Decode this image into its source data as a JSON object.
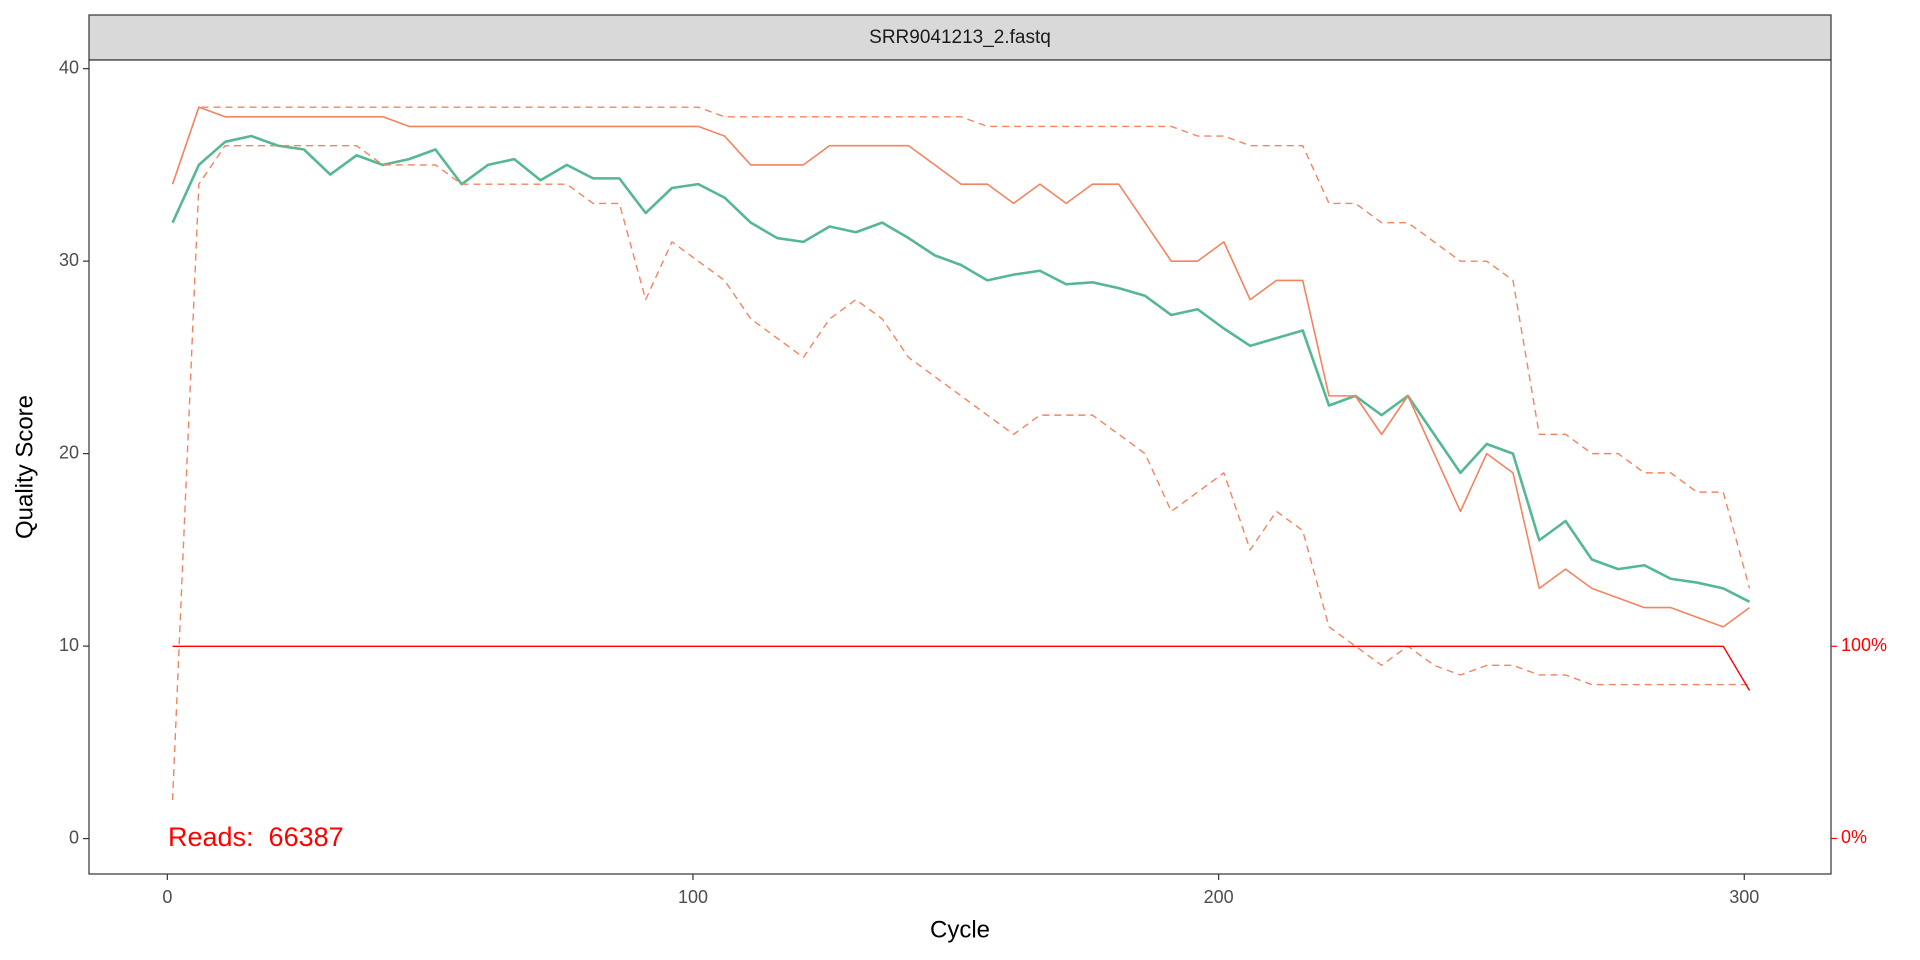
{
  "chart_data": {
    "type": "line",
    "strip_title": "SRR9041213_2.fastq",
    "x_label": "Cycle",
    "y_label": "Quality Score",
    "annotation": "Reads:  66387",
    "annotation_color": "#ff0000",
    "xlim": [
      -14.9,
      316.5
    ],
    "xticks": [
      0,
      100,
      200,
      300
    ],
    "ylim": [
      -1.84,
      40.45
    ],
    "yticks": [
      0,
      10,
      20,
      30,
      40
    ],
    "y2lim": [
      -18.5,
      405.1
    ],
    "y2ticks": [
      {
        "value": 0,
        "label": "0%"
      },
      {
        "value": 100,
        "label": "100%"
      }
    ],
    "y2_color": "#ff0000",
    "grid": false,
    "x": [
      1,
      6,
      11,
      16,
      21,
      26,
      31,
      36,
      41,
      46,
      51,
      56,
      61,
      66,
      71,
      76,
      81,
      86,
      91,
      96,
      101,
      106,
      111,
      116,
      121,
      126,
      131,
      136,
      141,
      146,
      151,
      156,
      161,
      166,
      171,
      176,
      181,
      186,
      191,
      196,
      201,
      206,
      211,
      216,
      221,
      226,
      231,
      236,
      241,
      246,
      251,
      256,
      261,
      266,
      271,
      276,
      281,
      286,
      291,
      296,
      301
    ],
    "series": [
      {
        "color": "#56b893",
        "width": 2.6,
        "dash": false,
        "values": [
          32,
          35,
          36.2,
          36.5,
          36,
          35.8,
          34.5,
          35.5,
          35,
          35.3,
          35.8,
          34,
          35,
          35.3,
          34.2,
          35,
          34.3,
          34.3,
          32.5,
          33.8,
          34,
          33.3,
          32,
          31.2,
          31,
          31.8,
          31.5,
          32,
          31.2,
          30.3,
          29.8,
          29,
          29.3,
          29.5,
          28.8,
          28.9,
          28.6,
          28.2,
          27.2,
          27.5,
          26.5,
          25.6,
          26,
          26.4,
          22.5,
          23,
          22,
          23,
          21,
          19,
          20.5,
          20,
          15.5,
          16.5,
          14.5,
          14,
          14.2,
          13.5,
          13.3,
          13,
          12.3
        ]
      },
      {
        "color": "#f4845f",
        "width": 1.6,
        "dash": false,
        "values": [
          34,
          38,
          37.5,
          37.5,
          37.5,
          37.5,
          37.5,
          37.5,
          37.5,
          37,
          37,
          37,
          37,
          37,
          37,
          37,
          37,
          37,
          37,
          37,
          37,
          36.5,
          35,
          35,
          35,
          36,
          36,
          36,
          36,
          35,
          34,
          34,
          33,
          34,
          33,
          34,
          34,
          32,
          30,
          30,
          31,
          28,
          29,
          29,
          23,
          23,
          21,
          23,
          20,
          17,
          20,
          19,
          13,
          14,
          13,
          12.5,
          12,
          12,
          11.5,
          11,
          12
        ]
      },
      {
        "color": "#f4845f",
        "width": 1.4,
        "dash": true,
        "values": [
          34,
          38,
          38,
          38,
          38,
          38,
          38,
          38,
          38,
          38,
          38,
          38,
          38,
          38,
          38,
          38,
          38,
          38,
          38,
          38,
          38,
          37.5,
          37.5,
          37.5,
          37.5,
          37.5,
          37.5,
          37.5,
          37.5,
          37.5,
          37.5,
          37,
          37,
          37,
          37,
          37,
          37,
          37,
          37,
          36.5,
          36.5,
          36,
          36,
          36,
          33,
          33,
          32,
          32,
          31,
          30,
          30,
          29,
          21,
          21,
          20,
          20,
          19,
          19,
          18,
          18,
          13
        ]
      },
      {
        "color": "#f4845f",
        "width": 1.4,
        "dash": true,
        "values": [
          2,
          34,
          36,
          36,
          36,
          36,
          36,
          36,
          35,
          35,
          35,
          34,
          34,
          34,
          34,
          34,
          33,
          33,
          28,
          31,
          30,
          29,
          27,
          26,
          25,
          27,
          28,
          27,
          25,
          24,
          23,
          22,
          21,
          22,
          22,
          22,
          21,
          20,
          17,
          18,
          19,
          15,
          17,
          16,
          11,
          10,
          9,
          10,
          9,
          8.5,
          9,
          9,
          8.5,
          8.5,
          8,
          8,
          8,
          8,
          8,
          8,
          8
        ]
      },
      {
        "color": "#ff0000",
        "width": 1.4,
        "dash": false,
        "axis": "y2",
        "values": [
          100,
          100,
          100,
          100,
          100,
          100,
          100,
          100,
          100,
          100,
          100,
          100,
          100,
          100,
          100,
          100,
          100,
          100,
          100,
          100,
          100,
          100,
          100,
          100,
          100,
          100,
          100,
          100,
          100,
          100,
          100,
          100,
          100,
          100,
          100,
          100,
          100,
          100,
          100,
          100,
          100,
          100,
          100,
          100,
          100,
          100,
          100,
          100,
          100,
          100,
          100,
          100,
          100,
          100,
          100,
          100,
          100,
          100,
          100,
          100,
          77
        ]
      }
    ]
  }
}
